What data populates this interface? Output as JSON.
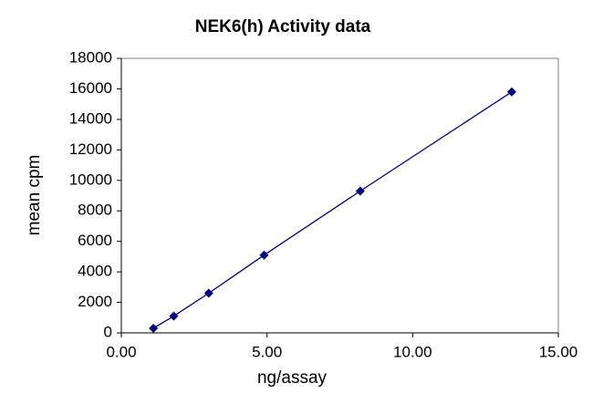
{
  "chart_data": {
    "type": "line",
    "title": "NEK6(h) Activity data",
    "x_label": "ng/assay",
    "y_label": "mean cpm",
    "x": [
      1.1,
      1.8,
      3.0,
      4.9,
      8.2,
      13.4
    ],
    "values": [
      300,
      1100,
      2600,
      5100,
      9300,
      15800
    ],
    "color": "#000080",
    "xlim": [
      0,
      15
    ],
    "xticks": [
      {
        "value": 0,
        "label": "0.00"
      },
      {
        "value": 5,
        "label": "5.00"
      },
      {
        "value": 10,
        "label": "10.00"
      },
      {
        "value": 15,
        "label": "15.00"
      }
    ],
    "ylim": [
      0,
      18000
    ],
    "yticks": [
      0,
      2000,
      4000,
      6000,
      8000,
      10000,
      12000,
      14000,
      16000,
      18000
    ],
    "grid": false
  }
}
